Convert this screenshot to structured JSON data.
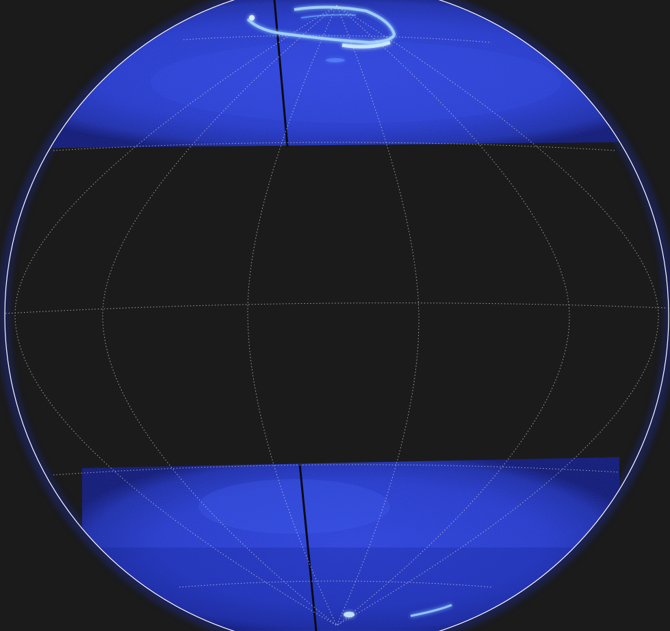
{
  "image": {
    "subject": "planet-aurora-composite",
    "background_color": "#1b1b1b",
    "disk_color": "#2236c8",
    "disk_dark_color": "#0c1470",
    "aurora_color": "#9fd4ff",
    "grid_color": "#d8d8d8",
    "limb_color": "#ffffff",
    "gap_color": "#1b1b1b"
  }
}
